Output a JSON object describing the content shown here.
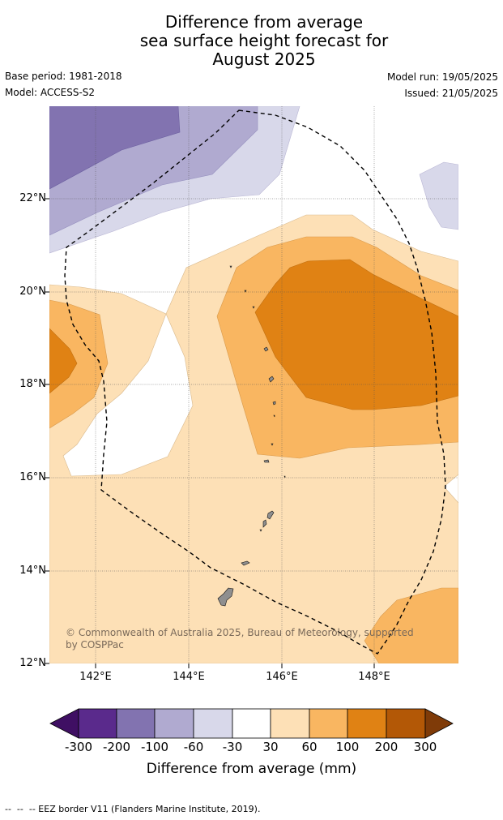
{
  "title": {
    "line1": "Difference from average",
    "line2": "sea surface height forecast for",
    "line3": "August 2025"
  },
  "meta": {
    "base_period": "Base period: 1981-2018",
    "model": "Model: ACCESS-S2",
    "model_run": "Model run: 19/05/2025",
    "issued": "Issued: 21/05/2025"
  },
  "map": {
    "lat_labels": [
      "22°N",
      "20°N",
      "18°N",
      "16°N",
      "14°N",
      "12°N"
    ],
    "lon_labels": [
      "142°E",
      "144°E",
      "146°E",
      "148°E"
    ],
    "extent": {
      "lon": [
        141,
        149.8
      ],
      "lat": [
        12,
        24
      ]
    },
    "credit": "© Commonwealth of Australia 2025, Bureau of Meteorology, supported by COSPPac",
    "eez_style": "dashed black line"
  },
  "colorbar": {
    "label": "Difference from average (mm)",
    "ticks": [
      "-300",
      "-200",
      "-100",
      "-60",
      "-30",
      "30",
      "60",
      "100",
      "200",
      "300"
    ],
    "colors": [
      "#3f0f63",
      "#5a2a8c",
      "#8273b0",
      "#b0aad0",
      "#d8d8ea",
      "#ffffff",
      "#fde0b6",
      "#f9b661",
      "#e08214",
      "#b35806",
      "#7f3b08"
    ]
  },
  "footer": {
    "legend_text": "--  --  -- EEZ border V11 (Flanders Marine Institute, 2019)."
  }
}
